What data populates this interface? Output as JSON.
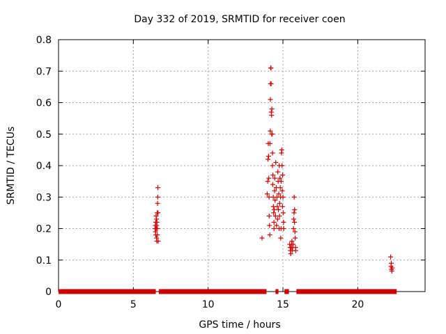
{
  "chart_data": {
    "type": "scatter",
    "title": "Day 332 of 2019, SRMTID for receiver coen",
    "xlabel": "GPS time / hours",
    "ylabel": "SRMTID / TECUs",
    "xlim": [
      0,
      24.5
    ],
    "ylim": [
      0,
      0.8
    ],
    "xticks": [
      0,
      5,
      10,
      15,
      20
    ],
    "yticks": [
      0,
      0.1,
      0.2,
      0.3,
      0.4,
      0.5,
      0.6,
      0.7,
      0.8
    ],
    "xtick_labels": [
      "0",
      "5",
      "10",
      "15",
      "20"
    ],
    "ytick_labels": [
      "0",
      "0.1",
      "0.2",
      "0.3",
      "0.4",
      "0.5",
      "0.6",
      "0.7",
      "0.8"
    ],
    "grid": true,
    "marker": "+",
    "color": "#cc0000",
    "zero_baseline_segments": [
      [
        0,
        6.5
      ],
      [
        6.7,
        13.9
      ],
      [
        14.5,
        14.7
      ],
      [
        15.1,
        15.4
      ],
      [
        15.9,
        22.6
      ]
    ],
    "points": [
      {
        "x": 6.45,
        "y": 0.2
      },
      {
        "x": 6.47,
        "y": 0.21
      },
      {
        "x": 6.48,
        "y": 0.19
      },
      {
        "x": 6.5,
        "y": 0.22
      },
      {
        "x": 6.5,
        "y": 0.18
      },
      {
        "x": 6.52,
        "y": 0.24
      },
      {
        "x": 6.53,
        "y": 0.2
      },
      {
        "x": 6.55,
        "y": 0.17
      },
      {
        "x": 6.56,
        "y": 0.21
      },
      {
        "x": 6.57,
        "y": 0.16
      },
      {
        "x": 6.58,
        "y": 0.22
      },
      {
        "x": 6.6,
        "y": 0.25
      },
      {
        "x": 6.61,
        "y": 0.18
      },
      {
        "x": 6.62,
        "y": 0.28
      },
      {
        "x": 6.63,
        "y": 0.3
      },
      {
        "x": 6.64,
        "y": 0.33
      },
      {
        "x": 6.65,
        "y": 0.25
      },
      {
        "x": 6.66,
        "y": 0.16
      },
      {
        "x": 6.55,
        "y": 0.23
      },
      {
        "x": 6.6,
        "y": 0.2
      },
      {
        "x": 13.6,
        "y": 0.17
      },
      {
        "x": 13.95,
        "y": 0.31
      },
      {
        "x": 13.98,
        "y": 0.35
      },
      {
        "x": 14.0,
        "y": 0.42
      },
      {
        "x": 14.02,
        "y": 0.47
      },
      {
        "x": 14.04,
        "y": 0.43
      },
      {
        "x": 14.05,
        "y": 0.36
      },
      {
        "x": 14.07,
        "y": 0.3
      },
      {
        "x": 14.08,
        "y": 0.24
      },
      {
        "x": 14.1,
        "y": 0.21
      },
      {
        "x": 14.12,
        "y": 0.18
      },
      {
        "x": 14.13,
        "y": 0.47
      },
      {
        "x": 14.15,
        "y": 0.51
      },
      {
        "x": 14.16,
        "y": 0.61
      },
      {
        "x": 14.17,
        "y": 0.66
      },
      {
        "x": 14.18,
        "y": 0.71
      },
      {
        "x": 14.2,
        "y": 0.71
      },
      {
        "x": 14.21,
        "y": 0.66
      },
      {
        "x": 14.22,
        "y": 0.57
      },
      {
        "x": 14.24,
        "y": 0.56
      },
      {
        "x": 14.25,
        "y": 0.5
      },
      {
        "x": 14.26,
        "y": 0.58
      },
      {
        "x": 14.28,
        "y": 0.5
      },
      {
        "x": 14.3,
        "y": 0.44
      },
      {
        "x": 14.3,
        "y": 0.4
      },
      {
        "x": 14.32,
        "y": 0.34
      },
      {
        "x": 14.33,
        "y": 0.37
      },
      {
        "x": 14.35,
        "y": 0.3
      },
      {
        "x": 14.36,
        "y": 0.27
      },
      {
        "x": 14.38,
        "y": 0.25
      },
      {
        "x": 14.4,
        "y": 0.22
      },
      {
        "x": 14.4,
        "y": 0.2
      },
      {
        "x": 14.42,
        "y": 0.26
      },
      {
        "x": 14.44,
        "y": 0.32
      },
      {
        "x": 14.45,
        "y": 0.36
      },
      {
        "x": 14.47,
        "y": 0.29
      },
      {
        "x": 14.5,
        "y": 0.24
      },
      {
        "x": 14.52,
        "y": 0.41
      },
      {
        "x": 14.55,
        "y": 0.33
      },
      {
        "x": 14.57,
        "y": 0.21
      },
      {
        "x": 14.6,
        "y": 0.3
      },
      {
        "x": 14.62,
        "y": 0.27
      },
      {
        "x": 14.64,
        "y": 0.23
      },
      {
        "x": 14.66,
        "y": 0.38
      },
      {
        "x": 14.68,
        "y": 0.35
      },
      {
        "x": 14.7,
        "y": 0.26
      },
      {
        "x": 14.72,
        "y": 0.31
      },
      {
        "x": 14.74,
        "y": 0.2
      },
      {
        "x": 14.75,
        "y": 0.4
      },
      {
        "x": 14.77,
        "y": 0.24
      },
      {
        "x": 14.78,
        "y": 0.28
      },
      {
        "x": 14.8,
        "y": 0.36
      },
      {
        "x": 14.82,
        "y": 0.33
      },
      {
        "x": 14.84,
        "y": 0.3
      },
      {
        "x": 14.85,
        "y": 0.17
      },
      {
        "x": 14.87,
        "y": 0.2
      },
      {
        "x": 14.88,
        "y": 0.35
      },
      {
        "x": 14.9,
        "y": 0.44
      },
      {
        "x": 14.92,
        "y": 0.45
      },
      {
        "x": 14.94,
        "y": 0.4
      },
      {
        "x": 14.95,
        "y": 0.32
      },
      {
        "x": 14.97,
        "y": 0.27
      },
      {
        "x": 14.98,
        "y": 0.37
      },
      {
        "x": 15.0,
        "y": 0.3
      },
      {
        "x": 15.02,
        "y": 0.25
      },
      {
        "x": 15.04,
        "y": 0.22
      },
      {
        "x": 15.05,
        "y": 0.2
      },
      {
        "x": 15.45,
        "y": 0.15
      },
      {
        "x": 15.48,
        "y": 0.14
      },
      {
        "x": 15.5,
        "y": 0.13
      },
      {
        "x": 15.52,
        "y": 0.12
      },
      {
        "x": 15.55,
        "y": 0.14
      },
      {
        "x": 15.57,
        "y": 0.15
      },
      {
        "x": 15.6,
        "y": 0.16
      },
      {
        "x": 15.62,
        "y": 0.13
      },
      {
        "x": 15.65,
        "y": 0.14
      },
      {
        "x": 15.68,
        "y": 0.15
      },
      {
        "x": 15.7,
        "y": 0.2
      },
      {
        "x": 15.72,
        "y": 0.23
      },
      {
        "x": 15.74,
        "y": 0.25
      },
      {
        "x": 15.75,
        "y": 0.3
      },
      {
        "x": 15.77,
        "y": 0.22
      },
      {
        "x": 15.78,
        "y": 0.26
      },
      {
        "x": 15.8,
        "y": 0.19
      },
      {
        "x": 15.82,
        "y": 0.17
      },
      {
        "x": 15.84,
        "y": 0.14
      },
      {
        "x": 15.85,
        "y": 0.13
      },
      {
        "x": 22.2,
        "y": 0.11
      },
      {
        "x": 22.22,
        "y": 0.08
      },
      {
        "x": 22.24,
        "y": 0.09
      },
      {
        "x": 22.26,
        "y": 0.07
      },
      {
        "x": 22.28,
        "y": 0.065
      },
      {
        "x": 22.3,
        "y": 0.075
      }
    ]
  }
}
